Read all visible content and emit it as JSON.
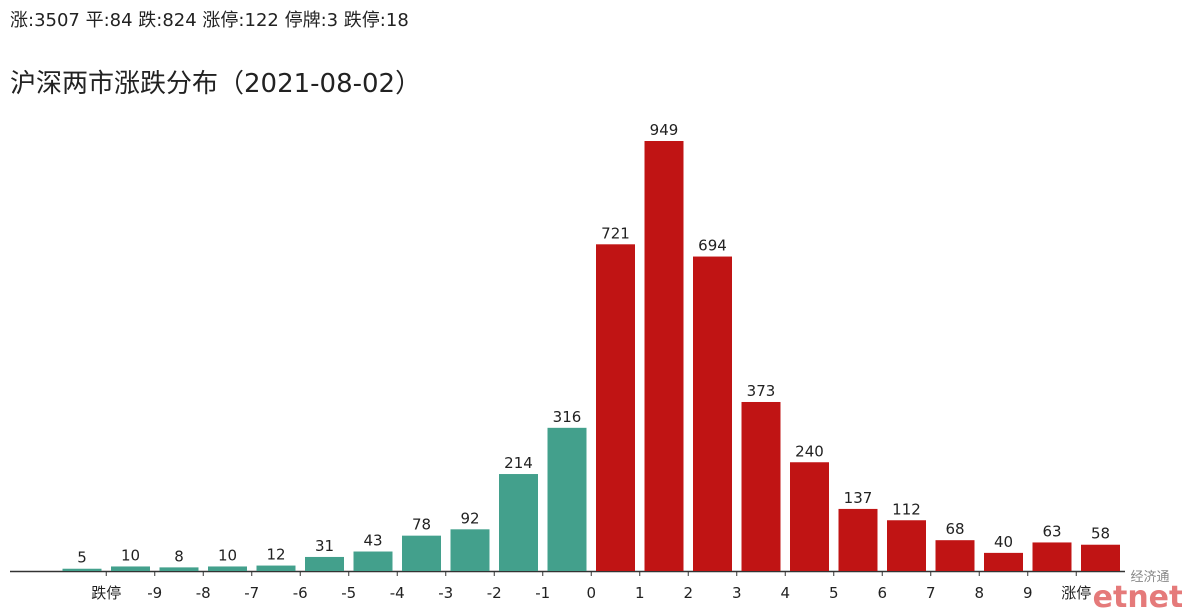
{
  "chart_data": {
    "type": "bar",
    "subtitle": "涨:3507 平:84 跌:824 涨停:122 停牌:3 跌停:18",
    "title": "沪深两市涨跌分布（2021-08-02）",
    "values": [
      5,
      10,
      8,
      10,
      12,
      31,
      43,
      78,
      92,
      214,
      316,
      721,
      949,
      694,
      373,
      240,
      137,
      112,
      68,
      40,
      63,
      58
    ],
    "bar_colors": [
      "#43a08c",
      "#43a08c",
      "#43a08c",
      "#43a08c",
      "#43a08c",
      "#43a08c",
      "#43a08c",
      "#43a08c",
      "#43a08c",
      "#43a08c",
      "#43a08c",
      "#c01414",
      "#c01414",
      "#c01414",
      "#c01414",
      "#c01414",
      "#c01414",
      "#c01414",
      "#c01414",
      "#c01414",
      "#c01414",
      "#c01414"
    ],
    "boundary_labels": [
      "跌停",
      "-9",
      "-8",
      "-7",
      "-6",
      "-5",
      "-4",
      "-3",
      "-2",
      "-1",
      "0",
      "1",
      "2",
      "3",
      "4",
      "5",
      "6",
      "7",
      "8",
      "9",
      "涨停"
    ],
    "watermark": [
      "经济通",
      "etnet"
    ]
  }
}
